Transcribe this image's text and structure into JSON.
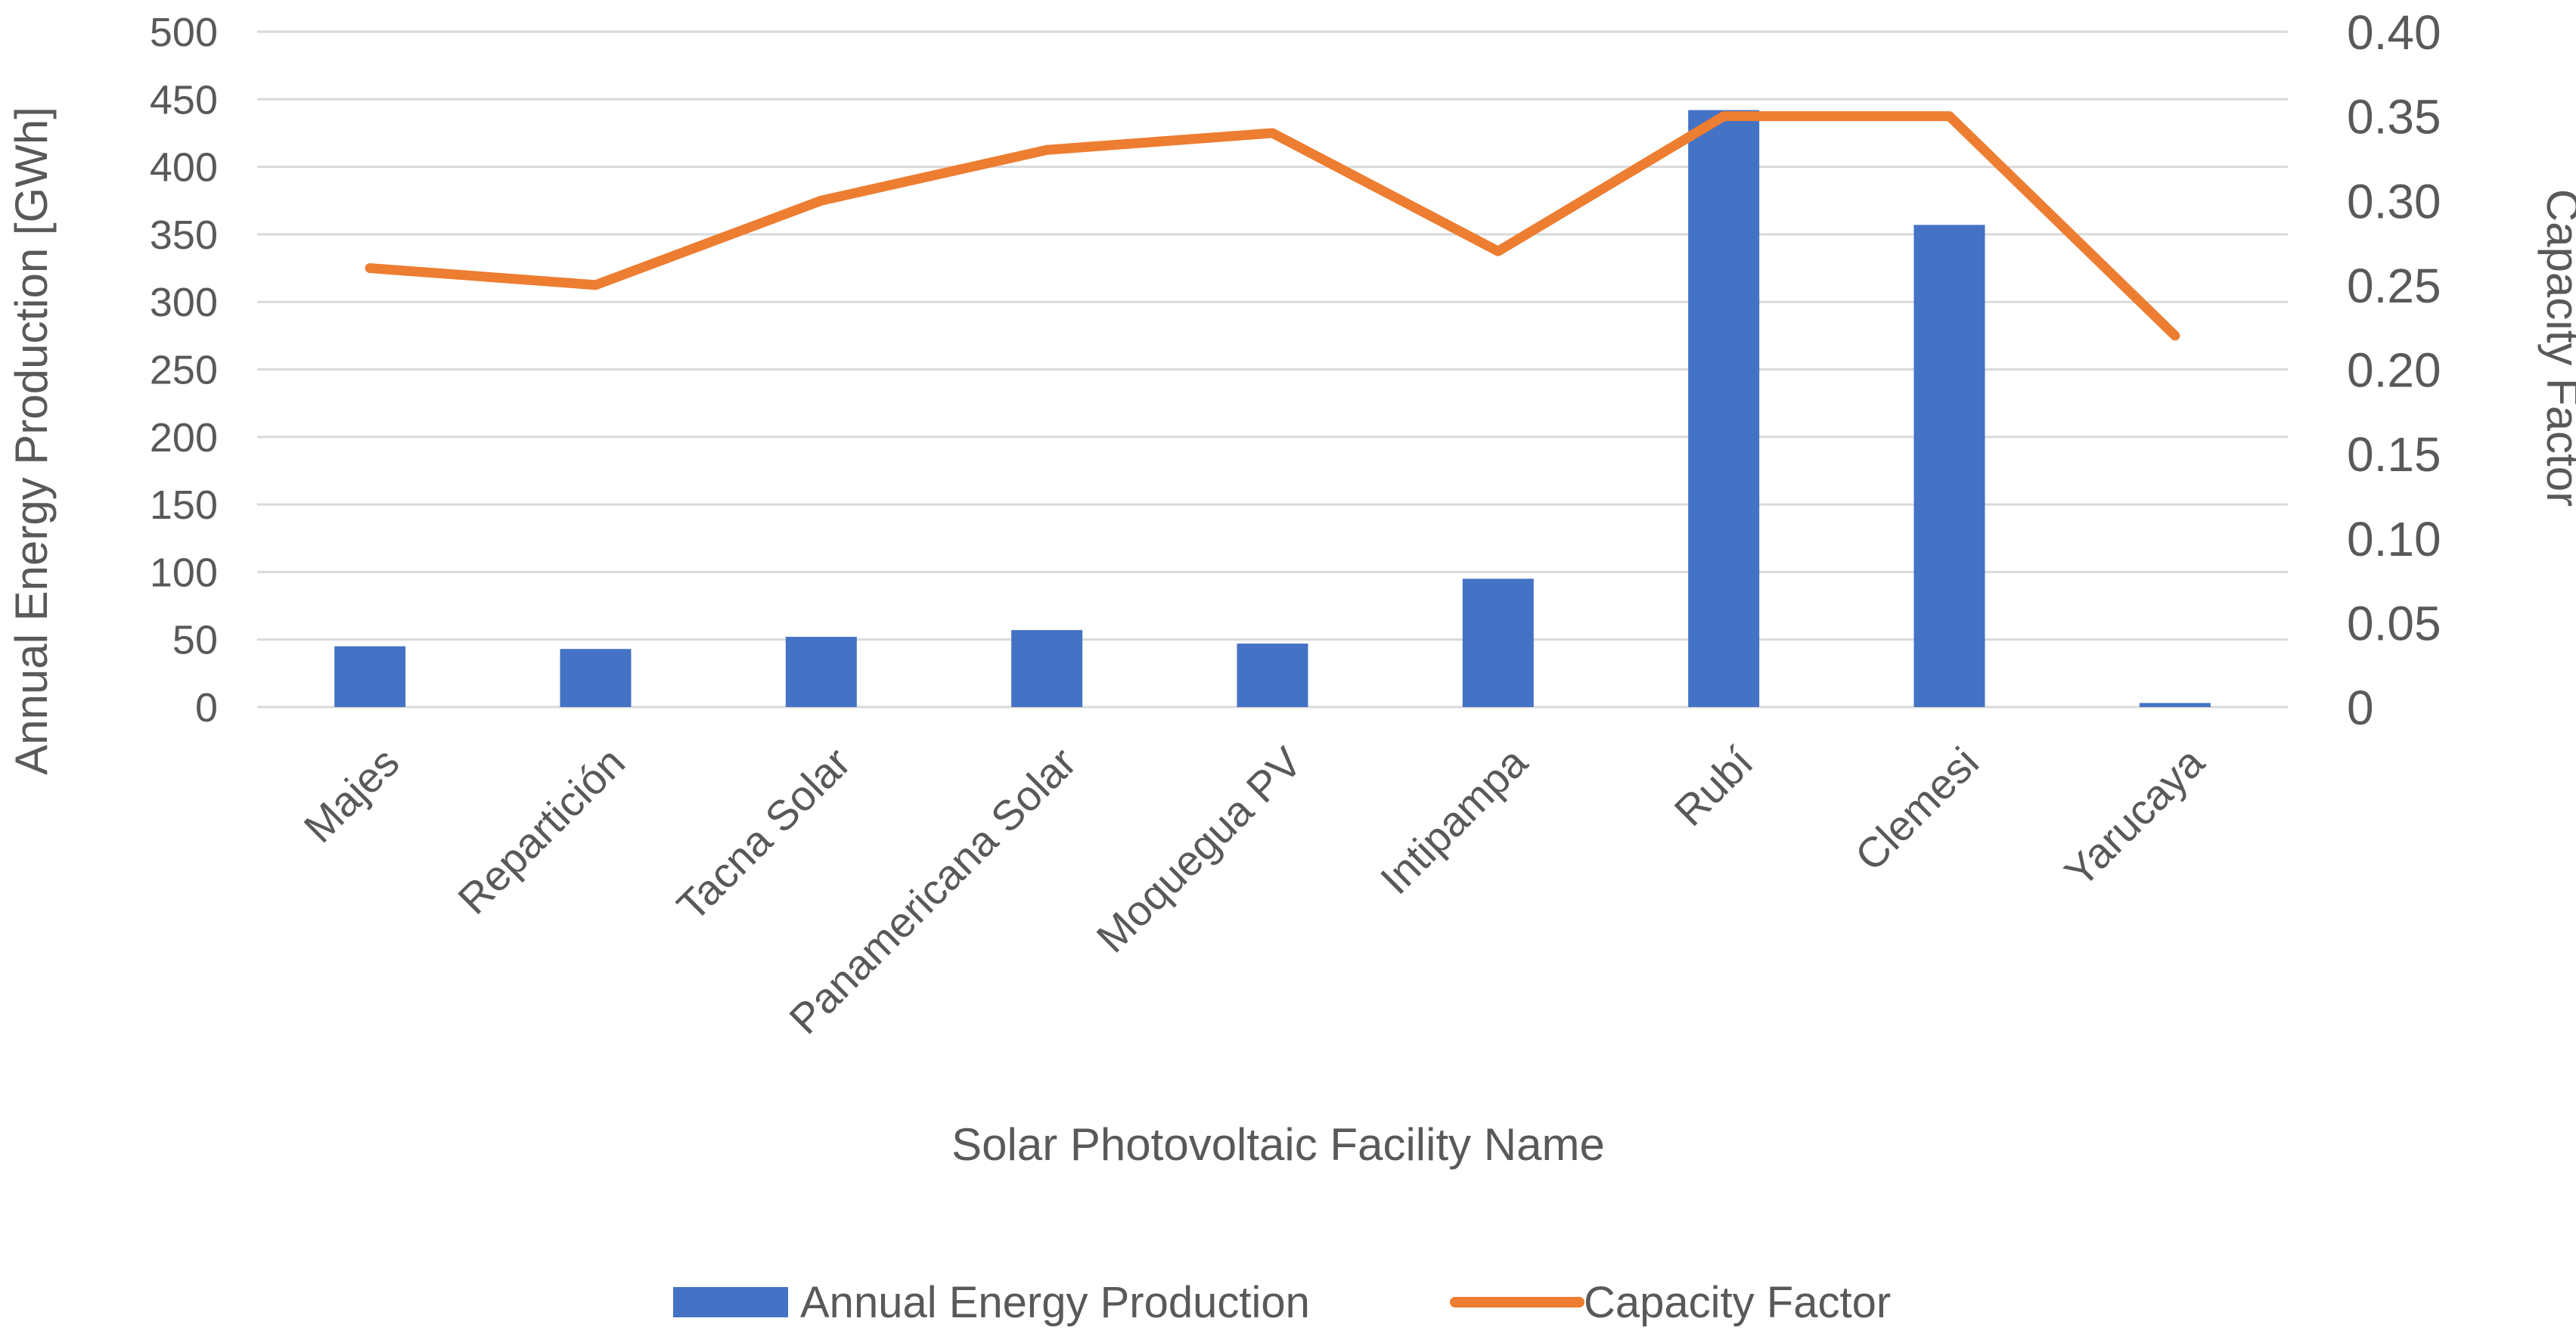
{
  "chart_data": {
    "type": "bar+line",
    "title": "",
    "categories": [
      "Majes",
      "Repartición",
      "Tacna Solar",
      "Panamericana Solar",
      "Moquegua PV",
      "Intipampa",
      "Rubí",
      "Clemesi",
      "Yarucaya"
    ],
    "xlabel": "Solar Photovoltaic Facility Name",
    "ylabel": "Annual Energy Production [GWh]",
    "y2label": "Capacity Factor",
    "ylim": [
      0,
      500
    ],
    "y2lim": [
      0,
      0.4
    ],
    "yticks": [
      "0",
      "50",
      "100",
      "150",
      "200",
      "250",
      "300",
      "350",
      "400",
      "450",
      "500"
    ],
    "y2ticks": [
      "0",
      "0.05",
      "0.10",
      "0.15",
      "0.20",
      "0.25",
      "0.30",
      "0.35",
      "0.40"
    ],
    "grid": true,
    "legend_position": "bottom",
    "series": [
      {
        "name": "Annual Energy Production",
        "type": "bar",
        "axis": "left",
        "color": "#4472C4",
        "values": [
          45,
          43,
          52,
          57,
          47,
          95,
          442,
          357,
          3
        ]
      },
      {
        "name": "Capacity Factor",
        "type": "line",
        "axis": "right",
        "color": "#ED7D31",
        "values": [
          0.26,
          0.25,
          0.3,
          0.33,
          0.34,
          0.27,
          0.35,
          0.35,
          0.22
        ]
      }
    ]
  }
}
